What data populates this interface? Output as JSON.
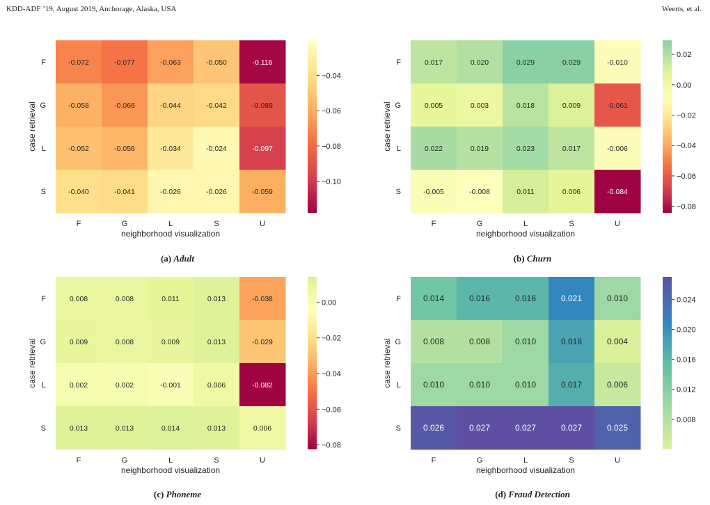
{
  "header": {
    "left": "KDD-ADF ’19, August 2019, Anchorage, Alaska, USA",
    "right": "Weerts, et al."
  },
  "palettes": {
    "spectral": [
      "#9e0142",
      "#d53e4f",
      "#f46d43",
      "#fdae61",
      "#fee08b",
      "#ffffbf",
      "#e6f598",
      "#abdda4",
      "#66c2a5",
      "#3288bd",
      "#5e4fa2"
    ]
  },
  "chart_data": [
    {
      "type": "heatmap",
      "caption_label": "(a)",
      "caption_name": "Adult",
      "xlabel": "neighborhood visualization",
      "ylabel": "case retrieval",
      "x_categories": [
        "F",
        "G",
        "L",
        "S",
        "U"
      ],
      "y_categories": [
        "F",
        "G",
        "L",
        "S"
      ],
      "values": [
        [
          -0.072,
          -0.077,
          -0.063,
          -0.05,
          -0.116
        ],
        [
          -0.058,
          -0.066,
          -0.044,
          -0.042,
          -0.089
        ],
        [
          -0.052,
          -0.056,
          -0.034,
          -0.024,
          -0.097
        ],
        [
          -0.04,
          -0.041,
          -0.026,
          -0.026,
          -0.059
        ]
      ],
      "cell_labels": [
        [
          "-0.072",
          "-0.077",
          "-0.063",
          "-0.050",
          "-0.116"
        ],
        [
          "-0.058",
          "-0.066",
          "-0.044",
          "-0.042",
          "-0.089"
        ],
        [
          "-0.052",
          "-0.056",
          "-0.034",
          "-0.024",
          "-0.097"
        ],
        [
          "-0.040",
          "-0.041",
          "-0.026",
          "-0.026",
          "-0.059"
        ]
      ],
      "colorbar": {
        "range": [
          -0.118,
          -0.02
        ],
        "ticks": [
          -0.04,
          -0.06,
          -0.08,
          -0.1
        ],
        "tick_labels": [
          "−0.04",
          "−0.06",
          "−0.08",
          "−0.10"
        ],
        "palette_range": [
          0,
          5
        ]
      }
    },
    {
      "type": "heatmap",
      "caption_label": "(b)",
      "caption_name": "Churn",
      "xlabel": "neighborhood visualization",
      "ylabel": "case retrieval",
      "x_categories": [
        "F",
        "G",
        "L",
        "S",
        "U"
      ],
      "y_categories": [
        "F",
        "G",
        "L",
        "S"
      ],
      "values": [
        [
          0.017,
          0.02,
          0.029,
          0.029,
          -0.01
        ],
        [
          0.005,
          0.003,
          0.018,
          0.009,
          -0.061
        ],
        [
          0.022,
          0.019,
          0.023,
          0.017,
          -0.006
        ],
        [
          -0.005,
          -0.008,
          0.011,
          0.006,
          -0.084
        ]
      ],
      "cell_labels": [
        [
          "0.017",
          "0.020",
          "0.029",
          "0.029",
          "-0.010"
        ],
        [
          "0.005",
          "0.003",
          "0.018",
          "0.009",
          "-0.061"
        ],
        [
          "0.022",
          "0.019",
          "0.023",
          "0.017",
          "-0.006"
        ],
        [
          "-0.005",
          "-0.008",
          "0.011",
          "0.006",
          "-0.084"
        ]
      ],
      "colorbar": {
        "range": [
          -0.0843,
          0.0292
        ],
        "ticks": [
          0.02,
          0.0,
          -0.02,
          -0.04,
          -0.06,
          -0.08
        ],
        "tick_labels": [
          "0.02",
          "0.00",
          "−0.02",
          "−0.04",
          "−0.06",
          "−0.08"
        ],
        "palette_range": [
          0,
          7.5
        ]
      }
    },
    {
      "type": "heatmap",
      "caption_label": "(c)",
      "caption_name": "Phoneme",
      "xlabel": "neighborhood visualization",
      "ylabel": "case retrieval",
      "x_categories": [
        "F",
        "G",
        "L",
        "S",
        "U"
      ],
      "y_categories": [
        "F",
        "G",
        "L",
        "S"
      ],
      "values": [
        [
          0.008,
          0.008,
          0.011,
          0.013,
          -0.038
        ],
        [
          0.009,
          0.008,
          0.009,
          0.013,
          -0.029
        ],
        [
          0.002,
          0.002,
          -0.001,
          0.006,
          -0.082
        ],
        [
          0.013,
          0.013,
          0.014,
          0.013,
          0.006
        ]
      ],
      "cell_labels": [
        [
          "0.008",
          "0.008",
          "0.011",
          "0.013",
          "-0.038"
        ],
        [
          "0.009",
          "0.008",
          "0.009",
          "0.013",
          "-0.029"
        ],
        [
          "0.002",
          "0.002",
          "-0.001",
          "0.006",
          "-0.082"
        ],
        [
          "0.013",
          "0.013",
          "0.014",
          "0.013",
          "0.006"
        ]
      ],
      "colorbar": {
        "range": [
          -0.0825,
          0.0142
        ],
        "ticks": [
          0.0,
          -0.02,
          -0.04,
          -0.06,
          -0.08
        ],
        "tick_labels": [
          "0.00",
          "−0.02",
          "−0.04",
          "−0.06",
          "−0.08"
        ],
        "palette_range": [
          0,
          6.2
        ]
      }
    },
    {
      "type": "heatmap",
      "caption_label": "(d)",
      "caption_name": "Fraud Detection",
      "xlabel": "neighborhood visualization",
      "ylabel": "case retrieval",
      "x_categories": [
        "F",
        "G",
        "L",
        "S",
        "U"
      ],
      "y_categories": [
        "F",
        "G",
        "L",
        "S"
      ],
      "values": [
        [
          0.014,
          0.016,
          0.016,
          0.021,
          0.01
        ],
        [
          0.008,
          0.008,
          0.01,
          0.018,
          0.004
        ],
        [
          0.01,
          0.01,
          0.01,
          0.017,
          0.006
        ],
        [
          0.026,
          0.027,
          0.027,
          0.027,
          0.025
        ]
      ],
      "cell_labels": [
        [
          "0.014",
          "0.016",
          "0.016",
          "0.021",
          "0.010"
        ],
        [
          "0.008",
          "0.008",
          "0.010",
          "0.018",
          "0.004"
        ],
        [
          "0.010",
          "0.010",
          "0.010",
          "0.017",
          "0.006"
        ],
        [
          "0.026",
          "0.027",
          "0.027",
          "0.027",
          "0.025"
        ]
      ],
      "colorbar": {
        "range": [
          0.004,
          0.027
        ],
        "ticks": [
          0.024,
          0.02,
          0.016,
          0.012,
          0.008
        ],
        "tick_labels": [
          "0.024",
          "0.020",
          "0.016",
          "0.012",
          "0.008"
        ],
        "palette_range": [
          6.2,
          10
        ]
      }
    }
  ]
}
